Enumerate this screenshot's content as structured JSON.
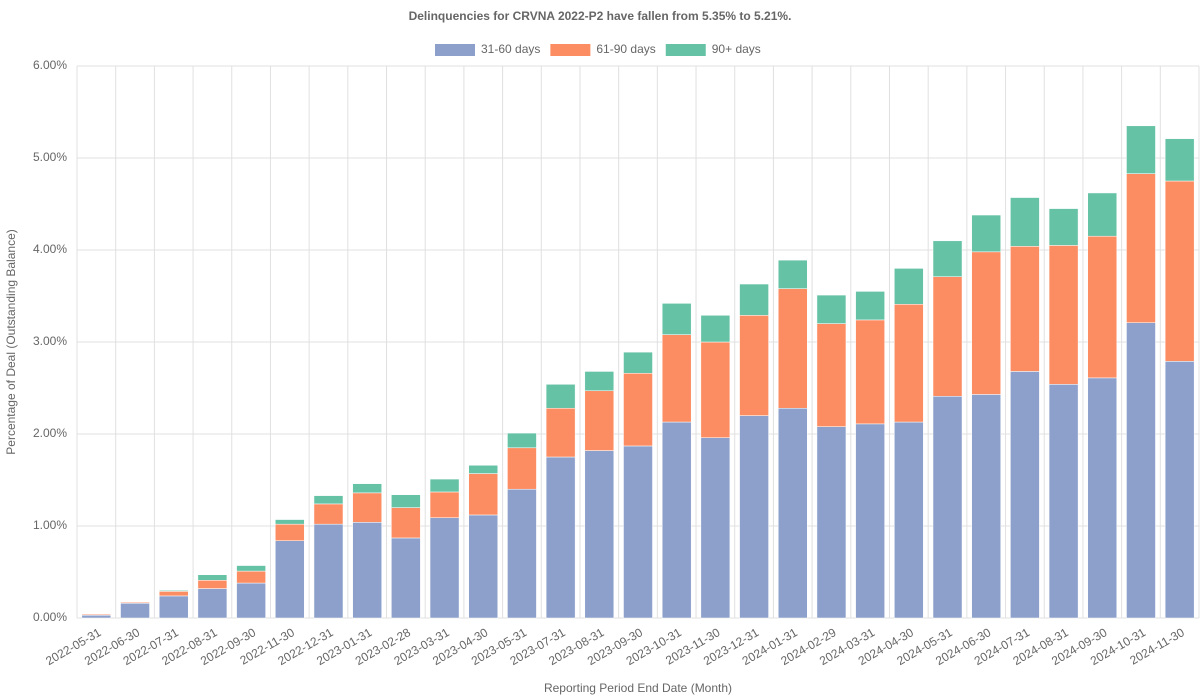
{
  "chart_data": {
    "type": "stacked_bar",
    "title": "Delinquencies for CRVNA 2022-P2 have fallen from 5.35% to 5.21%.",
    "x_label": "Reporting Period End Date (Month)",
    "y_label": "Percentage of Deal (Outstanding Balance)",
    "categories": [
      "2022-05-31",
      "2022-06-30",
      "2022-07-31",
      "2022-08-31",
      "2022-09-30",
      "2022-11-30",
      "2022-12-31",
      "2023-01-31",
      "2023-02-28",
      "2023-03-31",
      "2023-04-30",
      "2023-05-31",
      "2023-07-31",
      "2023-08-31",
      "2023-09-30",
      "2023-10-31",
      "2023-11-30",
      "2023-12-31",
      "2024-01-31",
      "2024-02-29",
      "2024-03-31",
      "2024-04-30",
      "2024-05-31",
      "2024-06-30",
      "2024-07-31",
      "2024-08-31",
      "2024-09-30",
      "2024-10-31",
      "2024-11-30"
    ],
    "series": [
      {
        "name": "31-60 days",
        "color": "#8da0cb",
        "values": [
          0.03,
          0.16,
          0.24,
          0.32,
          0.38,
          0.84,
          1.02,
          1.04,
          0.87,
          1.09,
          1.12,
          1.4,
          1.75,
          1.82,
          1.87,
          2.13,
          1.96,
          2.2,
          2.28,
          2.08,
          2.11,
          2.13,
          2.41,
          2.43,
          2.68,
          2.54,
          2.61,
          3.21,
          2.79
        ]
      },
      {
        "name": "61-90 days",
        "color": "#fc8d62",
        "values": [
          0.01,
          0.01,
          0.05,
          0.09,
          0.13,
          0.18,
          0.22,
          0.32,
          0.33,
          0.28,
          0.45,
          0.45,
          0.53,
          0.65,
          0.79,
          0.95,
          1.04,
          1.09,
          1.3,
          1.12,
          1.13,
          1.28,
          1.3,
          1.55,
          1.36,
          1.51,
          1.54,
          1.62,
          1.96
        ]
      },
      {
        "name": "90+ days",
        "color": "#66c2a5",
        "values": [
          0,
          0,
          0.01,
          0.06,
          0.06,
          0.05,
          0.09,
          0.1,
          0.14,
          0.14,
          0.09,
          0.16,
          0.26,
          0.21,
          0.23,
          0.34,
          0.29,
          0.34,
          0.31,
          0.31,
          0.31,
          0.39,
          0.39,
          0.4,
          0.53,
          0.4,
          0.47,
          0.52,
          0.46
        ]
      }
    ],
    "ylim": [
      0,
      6
    ],
    "yticks": [
      {
        "value": 0,
        "label": "0.00%"
      },
      {
        "value": 1,
        "label": "1.00%"
      },
      {
        "value": 2,
        "label": "2.00%"
      },
      {
        "value": 3,
        "label": "3.00%"
      },
      {
        "value": 4,
        "label": "4.00%"
      },
      {
        "value": 5,
        "label": "5.00%"
      },
      {
        "value": 6,
        "label": "6.00%"
      }
    ],
    "grid": true
  }
}
